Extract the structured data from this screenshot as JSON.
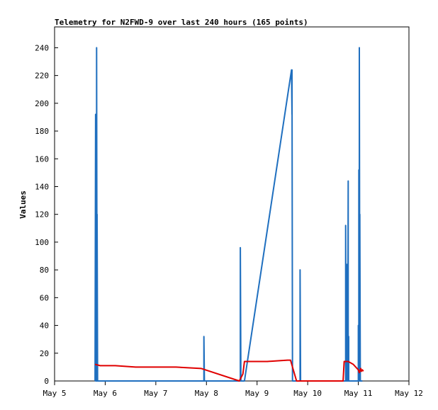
{
  "chart_data": {
    "type": "line",
    "title": "Telemetry for N2FWD-9 over last 240 hours (165 points)",
    "xlabel": "",
    "ylabel": "Values",
    "xlim": [
      0,
      7
    ],
    "ylim": [
      0,
      255
    ],
    "x_tick_values": [
      0,
      1,
      2,
      3,
      4,
      5,
      6,
      7
    ],
    "x_tick_labels": [
      "May 5",
      "May 6",
      "May 7",
      "May 8",
      "May 9",
      "May 10",
      "May 11",
      "May 12"
    ],
    "y_tick_values": [
      0,
      20,
      40,
      60,
      80,
      100,
      120,
      140,
      160,
      180,
      200,
      220,
      240
    ],
    "y_tick_labels": [
      "0",
      "20",
      "40",
      "60",
      "80",
      "100",
      "120",
      "140",
      "160",
      "180",
      "200",
      "220",
      "240"
    ],
    "grid": false,
    "legend": "none",
    "series": [
      {
        "color": "#1f6fbf",
        "x": [
          0.8,
          0.81,
          0.81,
          0.81,
          0.82,
          0.82,
          0.83,
          0.83,
          0.84,
          0.84,
          0.85,
          0.85,
          0.86,
          0.87,
          0.88,
          2.9,
          2.95,
          2.95,
          2.96,
          3.65,
          3.67,
          3.67,
          3.68,
          3.7,
          3.75,
          4.68,
          4.69,
          4.69,
          4.7,
          4.7,
          4.71,
          4.72,
          4.85,
          4.85,
          4.86,
          5.7,
          5.75,
          5.75,
          5.76,
          5.77,
          5.77,
          5.78,
          5.78,
          5.79,
          5.79,
          5.8,
          5.8,
          5.81,
          5.81,
          5.82,
          5.83,
          5.84,
          5.85,
          5.9,
          6.0,
          6.0,
          6.01,
          6.01,
          6.02,
          6.02,
          6.03,
          6.03,
          6.04,
          6.05,
          6.08
        ],
        "y": [
          0,
          192,
          0,
          128,
          0,
          120,
          0,
          240,
          0,
          120,
          0,
          0,
          0,
          0,
          0,
          0,
          0,
          32,
          0,
          0,
          0,
          96,
          0,
          0,
          0,
          224,
          192,
          224,
          0,
          0,
          0,
          0,
          0,
          80,
          0,
          0,
          0,
          112,
          0,
          84,
          0,
          56,
          0,
          72,
          0,
          144,
          0,
          32,
          0,
          0,
          0,
          0,
          0,
          0,
          0,
          40,
          0,
          152,
          0,
          240,
          0,
          120,
          0,
          0,
          0
        ]
      },
      {
        "color": "#e00000",
        "x": [
          0.8,
          0.9,
          1.2,
          1.6,
          2.0,
          2.4,
          2.9,
          3.65,
          3.72,
          3.75,
          4.0,
          4.2,
          4.6,
          4.66,
          4.78,
          5.7,
          5.72,
          5.8,
          5.9,
          5.95,
          6.0,
          6.02,
          6.05,
          6.06,
          6.08,
          6.1
        ],
        "y": [
          12,
          11,
          11,
          10,
          10,
          10,
          9,
          0,
          5,
          14,
          14,
          14,
          15,
          15,
          0,
          0,
          14,
          14,
          12,
          10,
          8,
          6,
          9,
          7,
          8,
          7
        ]
      }
    ]
  }
}
